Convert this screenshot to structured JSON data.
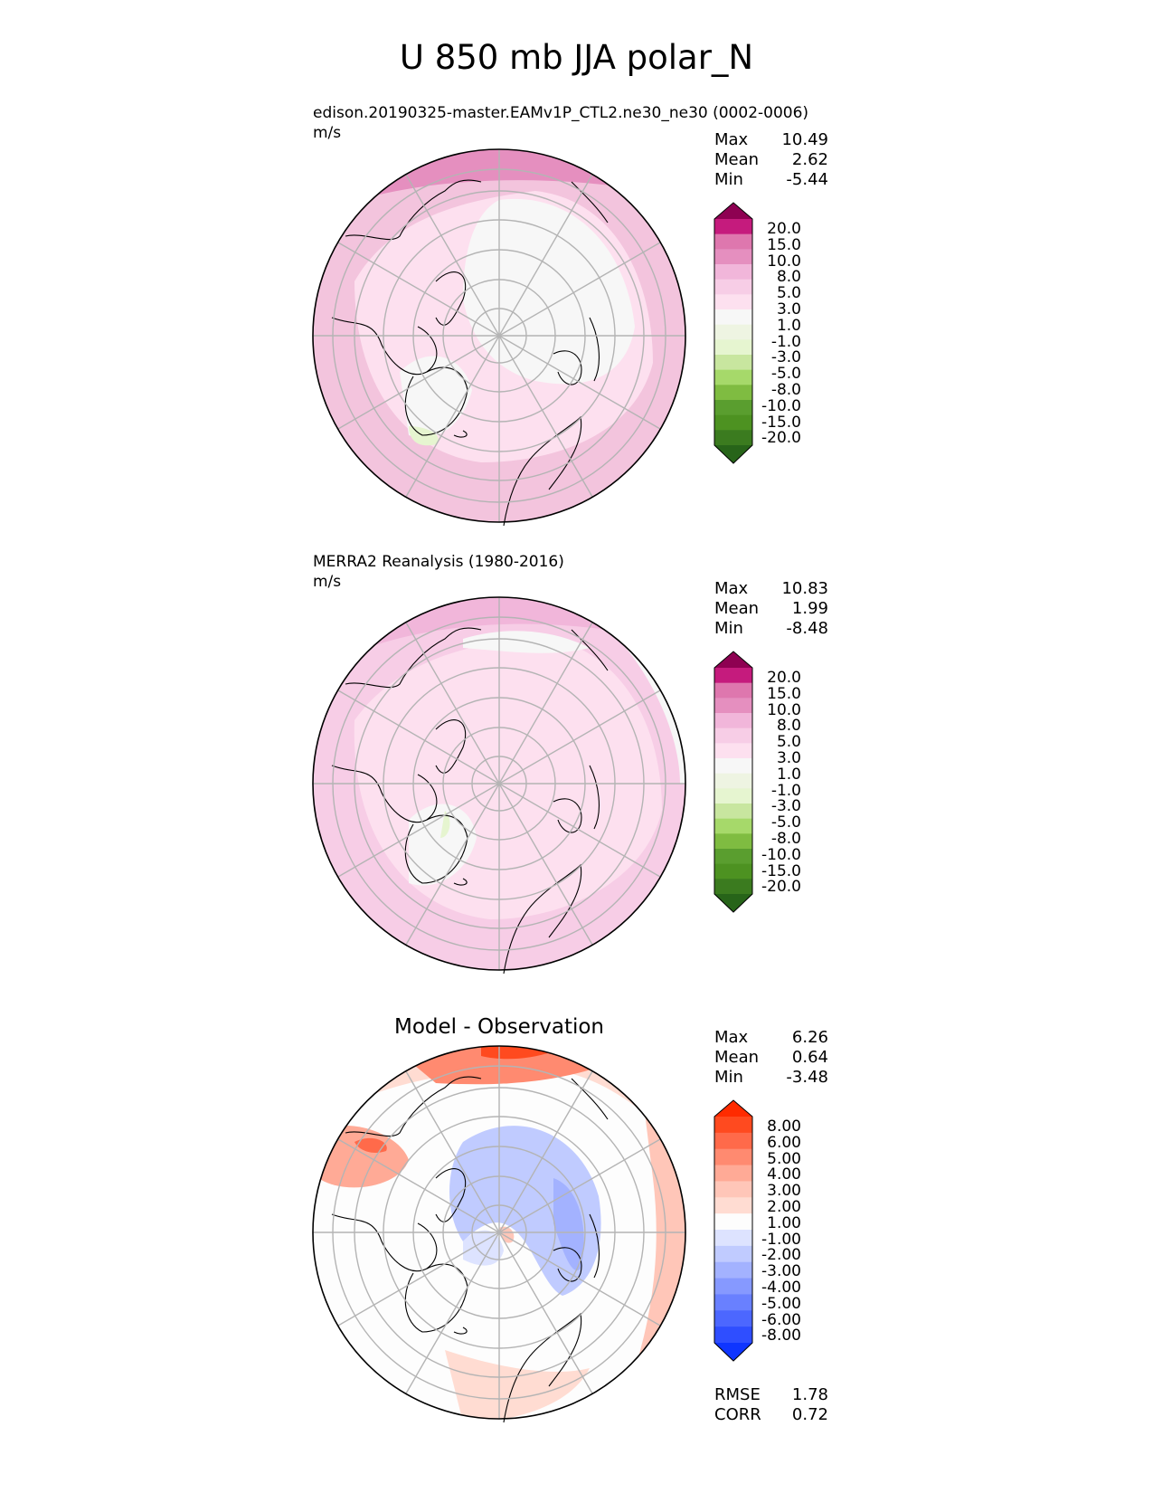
{
  "figure_title": "U 850 mb JJA polar_N",
  "panels": [
    {
      "id": "model",
      "subtitle": "edison.20190325-master.EAMv1P_CTL2.ne30_ne30 (0002-0006)",
      "units": "m/s",
      "stats": {
        "max_label": "Max",
        "max": "10.49",
        "mean_label": "Mean",
        "mean": "2.62",
        "min_label": "Min",
        "min": "-5.44"
      },
      "colorbar": {
        "ticks": [
          "20.0",
          "15.0",
          "10.0",
          "8.0",
          "5.0",
          "3.0",
          "1.0",
          "-1.0",
          "-3.0",
          "-5.0",
          "-8.0",
          "-10.0",
          "-15.0",
          "-20.0"
        ],
        "colors": [
          "#8e0152",
          "#c51b7d",
          "#de77ae",
          "#e58fbf",
          "#f1b6da",
          "#f7cde6",
          "#fde0ef",
          "#f7f7f7",
          "#eef4e2",
          "#e6f5d0",
          "#c8e69f",
          "#a6d96a",
          "#7fbc41",
          "#5a9e2f",
          "#4d9221",
          "#3b7b1f",
          "#276419"
        ]
      }
    },
    {
      "id": "obs",
      "subtitle": "MERRA2 Reanalysis (1980-2016)",
      "units": "m/s",
      "stats": {
        "max_label": "Max",
        "max": "10.83",
        "mean_label": "Mean",
        "mean": "1.99",
        "min_label": "Min",
        "min": "-8.48"
      },
      "colorbar": {
        "ticks": [
          "20.0",
          "15.0",
          "10.0",
          "8.0",
          "5.0",
          "3.0",
          "1.0",
          "-1.0",
          "-3.0",
          "-5.0",
          "-8.0",
          "-10.0",
          "-15.0",
          "-20.0"
        ],
        "colors": [
          "#8e0152",
          "#c51b7d",
          "#de77ae",
          "#e58fbf",
          "#f1b6da",
          "#f7cde6",
          "#fde0ef",
          "#f7f7f7",
          "#eef4e2",
          "#e6f5d0",
          "#c8e69f",
          "#a6d96a",
          "#7fbc41",
          "#5a9e2f",
          "#4d9221",
          "#3b7b1f",
          "#276419"
        ]
      }
    },
    {
      "id": "diff",
      "title": "Model - Observation",
      "stats": {
        "max_label": "Max",
        "max": "6.26",
        "mean_label": "Mean",
        "mean": "0.64",
        "min_label": "Min",
        "min": "-3.48"
      },
      "metrics": {
        "rmse_label": "RMSE",
        "rmse": "1.78",
        "corr_label": "CORR",
        "corr": "0.72"
      },
      "colorbar": {
        "ticks": [
          "8.00",
          "6.00",
          "5.00",
          "4.00",
          "3.00",
          "2.00",
          "1.00",
          "-1.00",
          "-2.00",
          "-3.00",
          "-4.00",
          "-5.00",
          "-6.00",
          "-8.00"
        ],
        "colors": [
          "#ff2b00",
          "#ff4a1f",
          "#ff6a4a",
          "#ff8a70",
          "#ffaa96",
          "#ffc6b8",
          "#ffdcd2",
          "#fdfdfd",
          "#dde3ff",
          "#c0cbff",
          "#a3b2ff",
          "#8699ff",
          "#6980ff",
          "#4c67ff",
          "#2f4eff",
          "#0f35ff"
        ]
      }
    }
  ]
}
